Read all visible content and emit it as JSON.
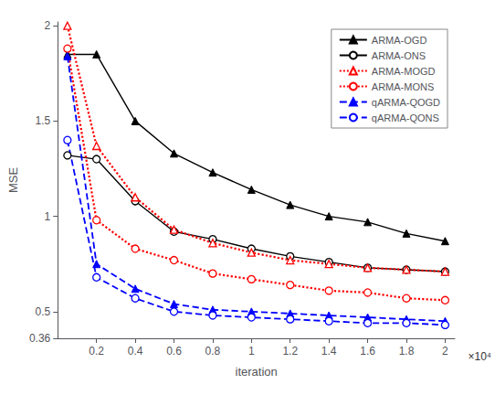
{
  "chart_data": {
    "type": "line",
    "xlabel": "iteration",
    "ylabel": "MSE",
    "annotations": [
      "×10⁴"
    ],
    "x": [
      0.05,
      0.2,
      0.4,
      0.6,
      0.8,
      1.0,
      1.2,
      1.4,
      1.6,
      1.8,
      2.0
    ],
    "series": [
      {
        "name": "ARMA-OGD",
        "color": "#000000",
        "line_style": "solid",
        "marker": "triangle-filled",
        "values": [
          1.85,
          1.85,
          1.5,
          1.33,
          1.23,
          1.14,
          1.06,
          1.0,
          0.97,
          0.91,
          0.87
        ]
      },
      {
        "name": "ARMA-ONS",
        "color": "#000000",
        "line_style": "solid",
        "marker": "circle-open",
        "values": [
          1.32,
          1.3,
          1.08,
          0.92,
          0.88,
          0.83,
          0.79,
          0.76,
          0.73,
          0.72,
          0.71
        ]
      },
      {
        "name": "ARMA-MOGD",
        "color": "#ff0000",
        "line_style": "dotted",
        "marker": "triangle-open",
        "values": [
          2.0,
          1.37,
          1.1,
          0.93,
          0.86,
          0.81,
          0.77,
          0.75,
          0.73,
          0.72,
          0.71
        ]
      },
      {
        "name": "ARMA-MONS",
        "color": "#ff0000",
        "line_style": "dotted",
        "marker": "circle-open",
        "values": [
          1.88,
          0.98,
          0.83,
          0.77,
          0.7,
          0.67,
          0.64,
          0.61,
          0.6,
          0.57,
          0.56
        ]
      },
      {
        "name": "qARMA-QOGD",
        "color": "#0000ff",
        "line_style": "dashed",
        "marker": "triangle-filled",
        "values": [
          1.84,
          0.75,
          0.62,
          0.54,
          0.51,
          0.5,
          0.49,
          0.48,
          0.47,
          0.46,
          0.45
        ]
      },
      {
        "name": "qARMA-QONS",
        "color": "#0000ff",
        "line_style": "dashed",
        "marker": "circle-open",
        "values": [
          1.4,
          0.68,
          0.57,
          0.5,
          0.48,
          0.47,
          0.46,
          0.45,
          0.44,
          0.44,
          0.43
        ]
      }
    ],
    "xlim": [
      0.0,
      2.05
    ],
    "ylim": [
      0.36,
      2.02
    ],
    "xticks": [
      0.2,
      0.4,
      0.6,
      0.8,
      1.0,
      1.2,
      1.4,
      1.6,
      1.8,
      2.0
    ],
    "yticks": [
      0.36,
      0.5,
      1.0,
      1.5,
      2.0
    ],
    "grid": false,
    "legend": "upper right"
  }
}
